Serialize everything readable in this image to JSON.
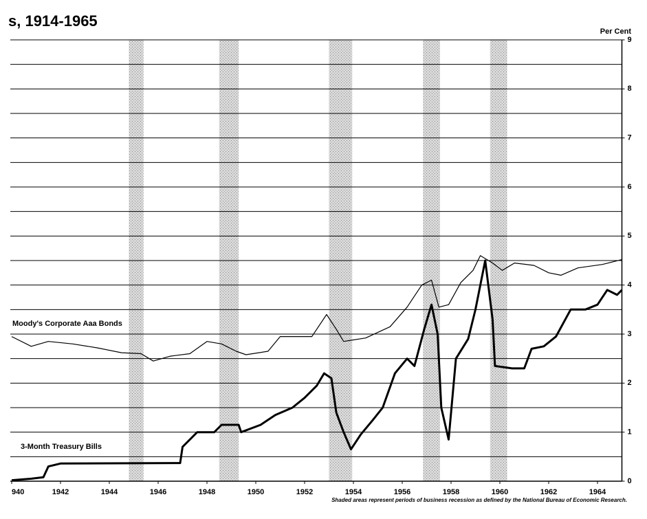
{
  "chart_data": {
    "type": "line",
    "title": "s, 1914-1965",
    "y_axis_label": "Per Cent",
    "note": "Shaded areas represent periods of business recession as defined by the National Bureau of Economic Research.",
    "xlim": [
      1940,
      1965
    ],
    "xticks": [
      {
        "value": 1940,
        "label": "940"
      },
      1942,
      1944,
      1946,
      1948,
      1950,
      1952,
      1954,
      1956,
      1958,
      1960,
      1962,
      1964
    ],
    "ylim": [
      0,
      9
    ],
    "yticks": [
      0,
      1,
      2,
      3,
      4,
      5,
      6,
      7,
      8,
      9
    ],
    "y_minor_ticks": [
      0.5,
      1.5,
      2.5,
      3.5,
      4.5,
      5.5,
      6.5,
      7.5,
      8.5
    ],
    "grid": true,
    "recessions": [
      [
        1944.8,
        1945.4
      ],
      [
        1948.5,
        1949.3
      ],
      [
        1953.0,
        1953.95
      ],
      [
        1956.85,
        1957.55
      ],
      [
        1959.6,
        1960.3
      ]
    ],
    "series": [
      {
        "name": "Moody's Corporate Aaa Bonds",
        "color": "#000000",
        "width": 1.2,
        "x": [
          1940,
          1940.8,
          1941.5,
          1942.5,
          1943.5,
          1944.5,
          1945.3,
          1945.8,
          1946.5,
          1947.3,
          1948,
          1948.6,
          1949.2,
          1949.6,
          1950.5,
          1951,
          1952.3,
          1952.9,
          1953.3,
          1953.6,
          1954.5,
          1955.5,
          1956.2,
          1956.8,
          1957.2,
          1957.5,
          1957.9,
          1958.4,
          1958.9,
          1959.2,
          1959.7,
          1960.1,
          1960.6,
          1961.4,
          1962,
          1962.5,
          1963.2,
          1964.2,
          1965
        ],
        "values": [
          2.95,
          2.75,
          2.85,
          2.8,
          2.72,
          2.62,
          2.6,
          2.45,
          2.55,
          2.6,
          2.85,
          2.8,
          2.65,
          2.58,
          2.65,
          2.95,
          2.95,
          3.4,
          3.1,
          2.85,
          2.92,
          3.15,
          3.55,
          4.0,
          4.1,
          3.55,
          3.6,
          4.05,
          4.3,
          4.6,
          4.45,
          4.3,
          4.45,
          4.4,
          4.25,
          4.2,
          4.35,
          4.42,
          4.52
        ]
      },
      {
        "name": "3-Month Treasury Bills",
        "color": "#000000",
        "width": 3,
        "x": [
          1940,
          1940.8,
          1941.3,
          1941.5,
          1942,
          1946.9,
          1947,
          1947.6,
          1948.3,
          1948.6,
          1949.3,
          1949.4,
          1950.2,
          1950.8,
          1951.5,
          1952,
          1952.5,
          1952.8,
          1953.1,
          1953.3,
          1953.6,
          1953.9,
          1954.3,
          1954.8,
          1955.2,
          1955.7,
          1956.2,
          1956.5,
          1956.9,
          1957.2,
          1957.45,
          1957.6,
          1957.9,
          1958.2,
          1958.7,
          1959.0,
          1959.4,
          1959.7,
          1959.8,
          1960.5,
          1961,
          1961.3,
          1961.8,
          1962.3,
          1962.9,
          1963.5,
          1964,
          1964.4,
          1964.8,
          1965
        ],
        "values": [
          0.02,
          0.05,
          0.08,
          0.3,
          0.36,
          0.37,
          0.7,
          1.0,
          1.0,
          1.15,
          1.15,
          1.0,
          1.15,
          1.35,
          1.5,
          1.7,
          1.95,
          2.2,
          2.1,
          1.4,
          1.0,
          0.65,
          0.95,
          1.25,
          1.5,
          2.2,
          2.5,
          2.35,
          3.1,
          3.6,
          3.0,
          1.5,
          0.85,
          2.5,
          2.9,
          3.5,
          4.5,
          3.3,
          2.35,
          2.3,
          2.3,
          2.7,
          2.75,
          2.95,
          3.5,
          3.5,
          3.6,
          3.9,
          3.8,
          3.9
        ]
      }
    ]
  }
}
